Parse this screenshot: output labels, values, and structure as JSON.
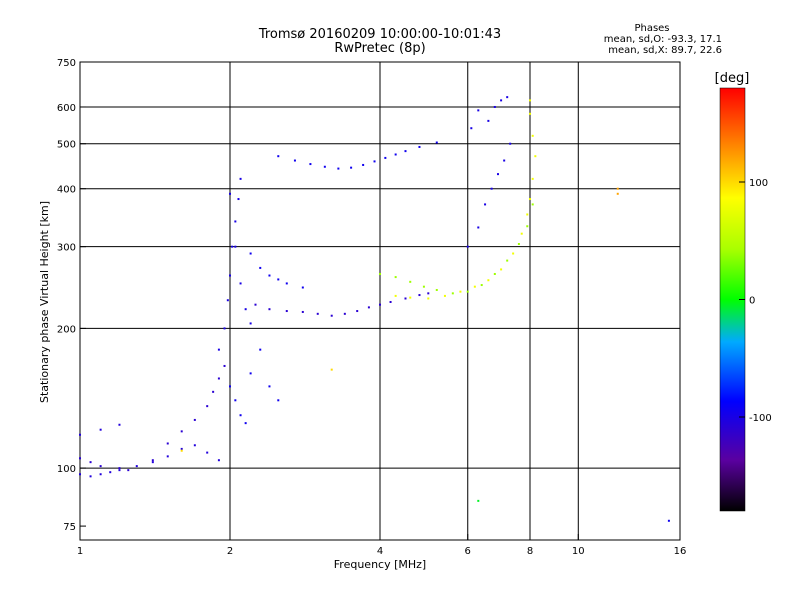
{
  "chart_data": {
    "type": "scatter",
    "title_lines": [
      "Tromsø 20160209 10:00:00-10:01:43",
      "RwPretec (8p)"
    ],
    "stats": {
      "heading": "Phases",
      "line1": "mean, sd,O: -93.3, 17.1",
      "line2": "mean, sd,X:  89.7, 22.6"
    },
    "xlabel": "Frequency [MHz]",
    "ylabel": "Stationary phase Virtual Height [km]",
    "x_scale": "log",
    "y_scale": "log",
    "xlim": [
      1,
      16
    ],
    "ylim": [
      70,
      750
    ],
    "x_ticks": [
      1,
      2,
      4,
      6,
      8,
      10,
      16
    ],
    "x_tick_labels": [
      "1",
      "2",
      "4",
      "6",
      "8",
      "10",
      "16"
    ],
    "y_ticks": [
      75,
      100,
      200,
      300,
      400,
      500,
      600,
      750
    ],
    "y_tick_labels": [
      "75",
      "100",
      "200",
      "300",
      "400",
      "500",
      "600",
      "750"
    ],
    "grid_x": [
      2,
      4,
      6,
      8,
      10
    ],
    "grid_y": [
      100,
      200,
      300,
      400,
      500,
      600
    ],
    "colorbar": {
      "label": "[deg]",
      "range": [
        -180,
        180
      ],
      "ticks": [
        100,
        0,
        -100
      ],
      "tick_labels": [
        "100",
        "0",
        "-100"
      ]
    },
    "series": [
      {
        "phase_deg": -105,
        "points": [
          [
            1.0,
            97
          ],
          [
            1.05,
            96
          ],
          [
            1.1,
            97
          ],
          [
            1.15,
            98
          ],
          [
            1.2,
            99
          ],
          [
            1.3,
            101
          ],
          [
            1.4,
            103
          ],
          [
            1.5,
            106
          ],
          [
            1.6,
            110
          ],
          [
            1.7,
            112
          ],
          [
            1.8,
            108
          ],
          [
            1.9,
            104
          ],
          [
            1.0,
            118
          ],
          [
            1.1,
            121
          ],
          [
            1.2,
            124
          ]
        ]
      },
      {
        "phase_deg": -110,
        "points": [
          [
            1.0,
            105
          ],
          [
            1.05,
            103
          ],
          [
            1.1,
            101
          ],
          [
            1.2,
            100
          ],
          [
            1.25,
            99
          ],
          [
            1.4,
            104
          ],
          [
            1.5,
            113
          ],
          [
            1.6,
            120
          ],
          [
            1.7,
            127
          ],
          [
            1.8,
            136
          ],
          [
            1.85,
            146
          ],
          [
            1.9,
            156
          ],
          [
            1.95,
            166
          ]
        ]
      },
      {
        "phase_deg": -100,
        "points": [
          [
            1.9,
            180
          ],
          [
            1.95,
            200
          ],
          [
            1.98,
            230
          ],
          [
            2.0,
            260
          ],
          [
            2.02,
            300
          ],
          [
            2.05,
            340
          ],
          [
            2.08,
            380
          ],
          [
            2.1,
            420
          ],
          [
            2.0,
            390
          ],
          [
            2.05,
            300
          ],
          [
            2.1,
            250
          ],
          [
            2.15,
            220
          ],
          [
            2.2,
            205
          ]
        ]
      },
      {
        "phase_deg": -95,
        "points": [
          [
            2.0,
            150
          ],
          [
            2.05,
            140
          ],
          [
            2.1,
            130
          ],
          [
            2.15,
            125
          ],
          [
            2.2,
            160
          ],
          [
            2.3,
            180
          ],
          [
            2.4,
            150
          ],
          [
            2.5,
            140
          ],
          [
            2.2,
            290
          ],
          [
            2.3,
            270
          ],
          [
            2.4,
            260
          ],
          [
            2.5,
            255
          ],
          [
            2.6,
            250
          ],
          [
            2.8,
            245
          ]
        ]
      },
      {
        "phase_deg": -110,
        "points": [
          [
            2.25,
            225
          ],
          [
            2.4,
            220
          ],
          [
            2.6,
            218
          ],
          [
            2.8,
            217
          ],
          [
            3.0,
            215
          ],
          [
            3.2,
            213
          ],
          [
            3.4,
            215
          ],
          [
            3.6,
            218
          ],
          [
            3.8,
            222
          ],
          [
            4.0,
            225
          ],
          [
            4.2,
            228
          ],
          [
            4.5,
            232
          ],
          [
            4.8,
            236
          ],
          [
            5.0,
            238
          ]
        ]
      },
      {
        "phase_deg": -95,
        "points": [
          [
            2.5,
            470
          ],
          [
            2.7,
            460
          ],
          [
            2.9,
            452
          ],
          [
            3.1,
            446
          ],
          [
            3.3,
            442
          ],
          [
            3.5,
            444
          ],
          [
            3.7,
            450
          ],
          [
            3.9,
            458
          ],
          [
            4.1,
            466
          ],
          [
            4.3,
            474
          ],
          [
            4.5,
            482
          ],
          [
            4.8,
            492
          ],
          [
            5.2,
            503
          ]
        ]
      },
      {
        "phase_deg": 40,
        "points": [
          [
            4.0,
            262
          ],
          [
            4.3,
            258
          ],
          [
            4.6,
            252
          ],
          [
            4.9,
            246
          ],
          [
            5.2,
            242
          ],
          [
            5.6,
            238
          ],
          [
            6.0,
            240
          ],
          [
            6.4,
            248
          ],
          [
            6.8,
            262
          ],
          [
            7.2,
            280
          ],
          [
            7.6,
            304
          ],
          [
            7.9,
            332
          ],
          [
            8.1,
            370
          ]
        ]
      },
      {
        "phase_deg": 80,
        "points": [
          [
            4.3,
            235
          ],
          [
            4.6,
            233
          ],
          [
            5.0,
            232
          ],
          [
            5.4,
            235
          ],
          [
            5.8,
            240
          ],
          [
            6.2,
            246
          ],
          [
            6.6,
            254
          ],
          [
            7.0,
            268
          ],
          [
            7.4,
            290
          ],
          [
            7.7,
            320
          ],
          [
            7.9,
            352
          ],
          [
            8.0,
            380
          ],
          [
            8.1,
            420
          ],
          [
            8.2,
            470
          ],
          [
            8.1,
            520
          ],
          [
            8.0,
            580
          ],
          [
            8.0,
            620
          ]
        ]
      },
      {
        "phase_deg": -100,
        "points": [
          [
            6.0,
            300
          ],
          [
            6.3,
            330
          ],
          [
            6.5,
            370
          ],
          [
            6.7,
            400
          ],
          [
            6.9,
            430
          ],
          [
            7.1,
            460
          ],
          [
            7.3,
            500
          ],
          [
            6.6,
            560
          ],
          [
            6.8,
            600
          ],
          [
            7.0,
            620
          ],
          [
            7.2,
            630
          ],
          [
            6.3,
            590
          ],
          [
            6.1,
            540
          ]
        ]
      },
      {
        "phase_deg": 120,
        "points": [
          [
            12.0,
            400
          ],
          [
            12.0,
            390
          ]
        ]
      },
      {
        "phase_deg": -95,
        "points": [
          [
            15.2,
            77
          ]
        ]
      },
      {
        "phase_deg": -5,
        "points": [
          [
            6.3,
            85
          ]
        ]
      },
      {
        "phase_deg": 100,
        "points": [
          [
            3.2,
            163
          ],
          [
            1.6,
            109
          ]
        ]
      }
    ]
  }
}
